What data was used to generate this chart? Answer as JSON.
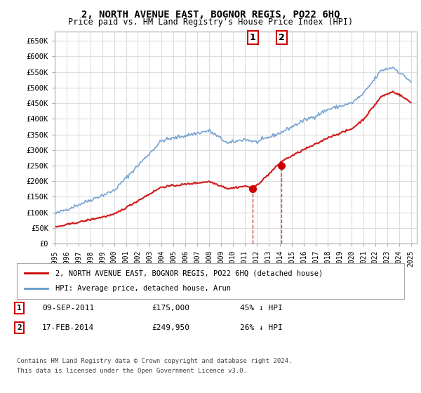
{
  "title": "2, NORTH AVENUE EAST, BOGNOR REGIS, PO22 6HQ",
  "subtitle": "Price paid vs. HM Land Registry's House Price Index (HPI)",
  "ylabel_ticks": [
    "£0",
    "£50K",
    "£100K",
    "£150K",
    "£200K",
    "£250K",
    "£300K",
    "£350K",
    "£400K",
    "£450K",
    "£500K",
    "£550K",
    "£600K",
    "£650K"
  ],
  "ytick_values": [
    0,
    50000,
    100000,
    150000,
    200000,
    250000,
    300000,
    350000,
    400000,
    450000,
    500000,
    550000,
    600000,
    650000
  ],
  "ylim": [
    0,
    680000
  ],
  "xlim_start": 1995.0,
  "xlim_end": 2025.5,
  "sale1_x": 2011.69,
  "sale1_y": 175000,
  "sale2_x": 2014.12,
  "sale2_y": 249950,
  "legend_line1": "2, NORTH AVENUE EAST, BOGNOR REGIS, PO22 6HQ (detached house)",
  "legend_line2": "HPI: Average price, detached house, Arun",
  "table_row1": "1    09-SEP-2011         £175,000         45% ↓ HPI",
  "table_row2": "2    17-FEB-2014         £249,950         26% ↓ HPI",
  "footnote1": "Contains HM Land Registry data © Crown copyright and database right 2024.",
  "footnote2": "This data is licensed under the Open Government Licence v3.0.",
  "red_color": "#cc0000",
  "blue_color": "#6699cc",
  "grid_color": "#dddddd",
  "bg_color": "#ffffff",
  "plot_bg": "#ffffff",
  "marker_color_sale1": "#cc0000",
  "marker_color_sale2": "#cc0000",
  "dashed_line_color": "#cc0000"
}
